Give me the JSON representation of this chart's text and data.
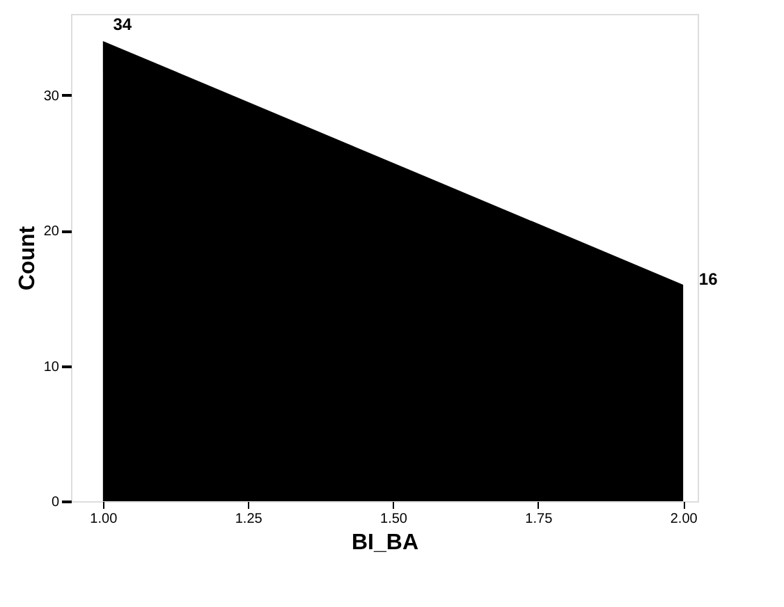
{
  "chart_data": {
    "type": "area",
    "x": [
      1.0,
      2.0
    ],
    "values": [
      34,
      16
    ],
    "color": "#000000",
    "xlabel": "BI_BA",
    "ylabel": "Count",
    "xlim": [
      0.945,
      2.025
    ],
    "ylim": [
      0,
      36
    ],
    "xticks": [
      {
        "value": 1,
        "label": "1.00"
      },
      {
        "value": 1.25,
        "label": "1.25"
      },
      {
        "value": 1.5,
        "label": "1.50"
      },
      {
        "value": 1.75,
        "label": "1.75"
      },
      {
        "value": 2,
        "label": "2.00"
      }
    ],
    "yticks": [
      0,
      10,
      20,
      30
    ],
    "data_labels": true,
    "grid": false
  }
}
